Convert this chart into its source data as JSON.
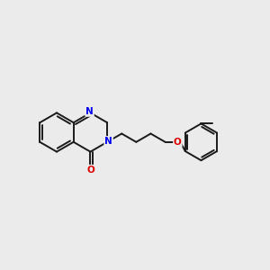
{
  "bg_color": "#ebebeb",
  "bond_color": "#1a1a1a",
  "N_color": "#0000ee",
  "O_color": "#dd0000",
  "lw": 1.4,
  "figsize": [
    3.0,
    3.0
  ],
  "dpi": 100,
  "xlim": [
    0,
    10
  ],
  "ylim": [
    2,
    8
  ]
}
